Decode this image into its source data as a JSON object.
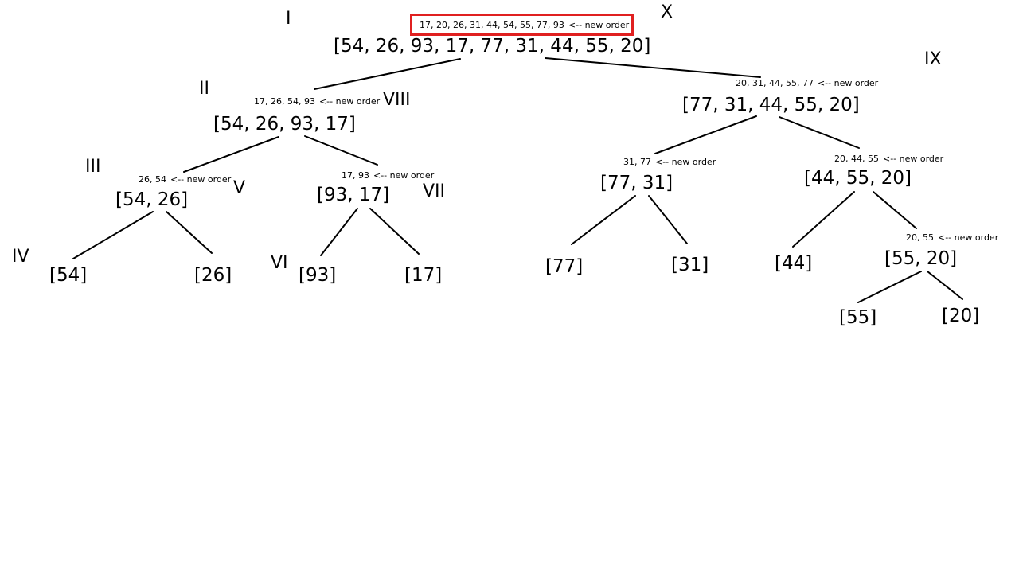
{
  "diagram": {
    "accent_color": "#e02020",
    "arrow_text": "<-- new order",
    "nodes": {
      "root": "[54, 26, 93, 17, 77, 31, 44, 55, 20]",
      "left": "[54, 26, 93, 17]",
      "right": "[77, 31, 44, 55, 20]",
      "ll": "[54, 26]",
      "lr": "[93, 17]",
      "rl": "[77, 31]",
      "rr": "[44, 55, 20]",
      "lll": "[54]",
      "llr": "[26]",
      "lrl": "[93]",
      "lrr": "[17]",
      "rll": "[77]",
      "rlr": "[31]",
      "rrl": "[44]",
      "rrr": "[55, 20]",
      "rrrl": "[55]",
      "rrrr": "[20]"
    },
    "orders": {
      "root": "17, 20, 26, 31, 44, 54, 55, 77, 93",
      "left": "17, 26, 54, 93",
      "right": "20, 31, 44, 55, 77",
      "ll": "26, 54",
      "lr": "17, 93",
      "rl": "31, 77",
      "rr": "20, 44, 55",
      "rrr": "20, 55"
    },
    "steps": {
      "s1": "I",
      "s2": "II",
      "s3": "III",
      "s4": "IV",
      "s5": "V",
      "s6": "VI",
      "s7": "VII",
      "s8": "VIII",
      "s9": "IX",
      "s10": "X"
    }
  }
}
